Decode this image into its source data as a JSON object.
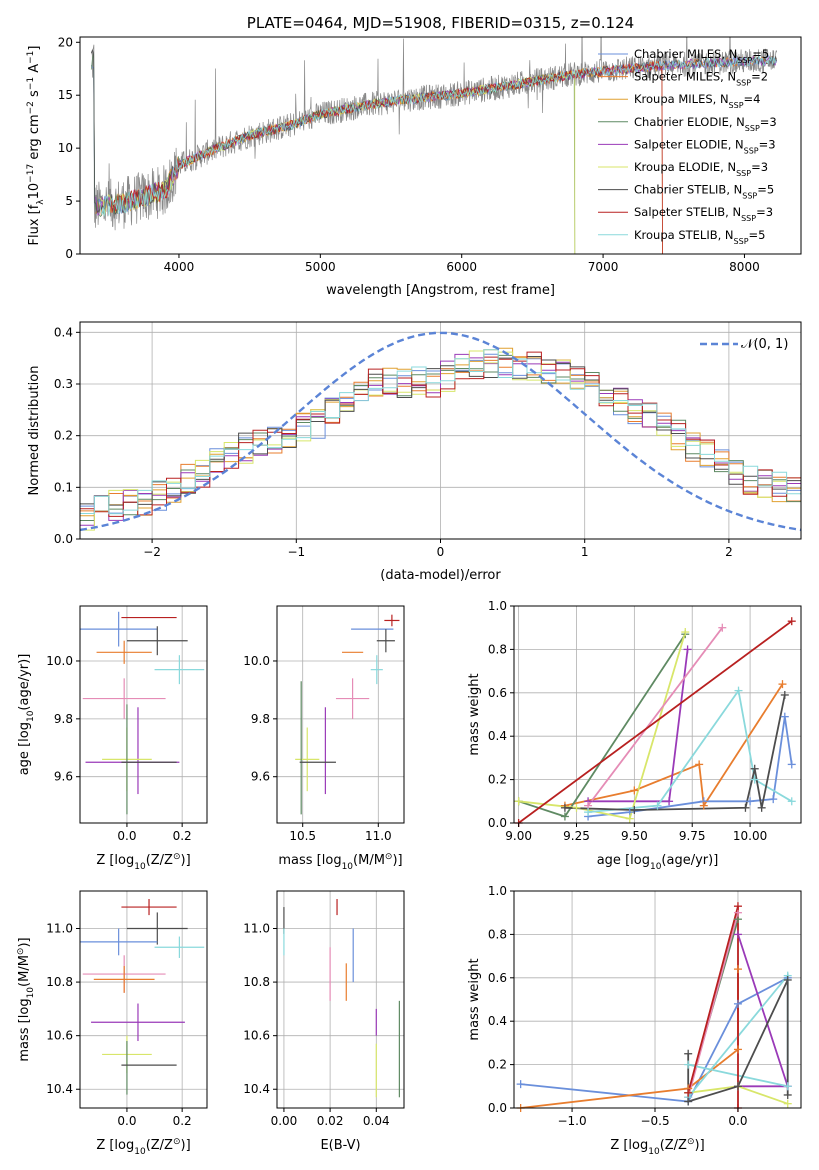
{
  "series_styles": [
    {
      "name": "Chabrier MILES",
      "nssp": "5",
      "color": "#6a8fdb"
    },
    {
      "name": "Salpeter MILES",
      "nssp": "2",
      "color": "#e87d2e"
    },
    {
      "name": "Kroupa MILES",
      "nssp": "4",
      "color": "#e0a030"
    },
    {
      "name": "Chabrier ELODIE",
      "nssp": "3",
      "color": "#5f8a63"
    },
    {
      "name": "Salpeter ELODIE",
      "nssp": "3",
      "color": "#9a3ab8"
    },
    {
      "name": "Kroupa ELODIE",
      "nssp": "3",
      "color": "#d8e66a"
    },
    {
      "name": "Chabrier STELIB",
      "nssp": "5",
      "color": "#4d4d4d"
    },
    {
      "name": "Salpeter STELIB",
      "nssp": "3",
      "color": "#b82020"
    },
    {
      "name": "Kroupa STELIB",
      "nssp": "5",
      "color": "#8ad9dc"
    }
  ],
  "extra_colors": {
    "pink": "#e58cb6",
    "gaussian": "#5b84d6"
  },
  "chart_data": [
    {
      "id": "spectrum",
      "type": "line",
      "title": "PLATE=0464, MJD=51908, FIBERID=0315, z=0.124",
      "xlabel": "wavelength [Angstrom, rest frame]",
      "ylabel_parts": [
        "Flux [f",
        "λ",
        "10",
        "−17",
        " erg cm",
        "−2",
        " s",
        "−1",
        " A",
        "−1",
        "]"
      ],
      "xlim": [
        3300,
        8400
      ],
      "ylim": [
        0,
        20.5
      ],
      "xticks": [
        4000,
        5000,
        6000,
        7000,
        8000
      ],
      "yticks": [
        0,
        5,
        10,
        15,
        20
      ],
      "legend_position": "top-right",
      "continuum": [
        [
          3400,
          4.4
        ],
        [
          3600,
          4.8
        ],
        [
          3800,
          5.6
        ],
        [
          3900,
          6.0
        ],
        [
          4000,
          8.4
        ],
        [
          4200,
          9.6
        ],
        [
          4500,
          11.2
        ],
        [
          4800,
          12.2
        ],
        [
          5000,
          13.2
        ],
        [
          5300,
          14.0
        ],
        [
          5600,
          14.6
        ],
        [
          5900,
          15.0
        ],
        [
          6200,
          15.6
        ],
        [
          6500,
          16.3
        ],
        [
          6800,
          17.0
        ],
        [
          7100,
          17.4
        ],
        [
          7400,
          17.8
        ],
        [
          7700,
          18.0
        ],
        [
          8000,
          18.2
        ],
        [
          8200,
          18.3
        ]
      ],
      "data_range": [
        3380,
        8230
      ],
      "model_dropouts": [
        {
          "series": "Kroupa ELODIE",
          "x": 6800
        },
        {
          "series": "Chabrier ELODIE",
          "x": 6800
        },
        {
          "series": "Salpeter STELIB",
          "x": 7420
        },
        {
          "series": "Kroupa MILES",
          "x": 7420
        }
      ]
    },
    {
      "id": "residuals",
      "type": "histogram",
      "xlabel": "(data-model)/error",
      "ylabel": "Normed distribution",
      "xlim": [
        -2.5,
        2.5
      ],
      "ylim": [
        0,
        0.42
      ],
      "xticks": [
        -2,
        -1,
        0,
        1,
        2
      ],
      "yticks": [
        0,
        0.1,
        0.2,
        0.3,
        0.4
      ],
      "grid": true,
      "bin_width": 0.1,
      "legend_label": "𝒩(0, 1)",
      "legend_position": "top-right",
      "base_profile": [
        0.045,
        0.055,
        0.065,
        0.07,
        0.075,
        0.085,
        0.1,
        0.115,
        0.13,
        0.145,
        0.16,
        0.175,
        0.185,
        0.19,
        0.2,
        0.215,
        0.225,
        0.245,
        0.27,
        0.285,
        0.3,
        0.305,
        0.3,
        0.31,
        0.3,
        0.315,
        0.33,
        0.34,
        0.34,
        0.34,
        0.335,
        0.335,
        0.33,
        0.32,
        0.31,
        0.3,
        0.28,
        0.265,
        0.25,
        0.235,
        0.22,
        0.2,
        0.18,
        0.165,
        0.15,
        0.13,
        0.115,
        0.105,
        0.1,
        0.09
      ]
    },
    {
      "id": "age_vs_Z",
      "type": "errorbar",
      "xlabel_parts": [
        "Z [log",
        "10",
        "(Z/Z",
        "⊙",
        ")]"
      ],
      "ylabel_parts": [
        "age  [log",
        "10",
        "(age/yr)]"
      ],
      "xlim": [
        -0.17,
        0.29
      ],
      "ylim": [
        9.44,
        10.19
      ],
      "xticks": [
        0.0,
        0.2
      ],
      "yticks": [
        9.6,
        9.8,
        10.0
      ],
      "grid": true,
      "points": [
        {
          "color": "#b82020",
          "x": 0.08,
          "xerr": 0.1,
          "y": 10.15,
          "yerr": 0.0
        },
        {
          "color": "#6a8fdb",
          "x": -0.03,
          "xerr": 0.14,
          "y": 10.11,
          "yerr": 0.06
        },
        {
          "color": "#4d4d4d",
          "x": 0.11,
          "xerr": 0.11,
          "y": 10.07,
          "yerr": 0.05
        },
        {
          "color": "#e87d2e",
          "x": -0.01,
          "xerr": 0.1,
          "y": 10.03,
          "yerr": 0.04
        },
        {
          "color": "#8ad9dc",
          "x": 0.19,
          "xerr": 0.09,
          "y": 9.97,
          "yerr": 0.05
        },
        {
          "color": "#e58cb6",
          "x": -0.01,
          "xerr": 0.15,
          "y": 9.87,
          "yerr": 0.07
        },
        {
          "color": "#9a3ab8",
          "x": 0.04,
          "xerr": 0.0,
          "y": 9.69,
          "yerr": 0.15
        },
        {
          "color": "#d8e66a",
          "x": 0.0,
          "xerr": 0.09,
          "y": 9.66,
          "yerr": 0.11
        },
        {
          "color": "#5f8a63",
          "x": 0.0,
          "xerr": 0.0,
          "y": 9.66,
          "yerr": 0.19
        },
        {
          "color": "#9a3ab8",
          "x": 0.02,
          "xerr": 0.17,
          "y": 9.65,
          "yerr": 0.0
        },
        {
          "color": "#4d4d4d",
          "x": 0.08,
          "xerr": 0.1,
          "y": 9.65,
          "yerr": 0.0
        }
      ]
    },
    {
      "id": "age_vs_mass",
      "type": "errorbar",
      "xlabel_parts": [
        "mass [log",
        "10",
        "(M/M",
        "⊙",
        ")]"
      ],
      "xlim": [
        10.33,
        11.17
      ],
      "ylim": [
        9.44,
        10.19
      ],
      "xticks": [
        10.5,
        11.0
      ],
      "yticks": [
        9.6,
        9.8,
        10.0
      ],
      "grid": true,
      "points": [
        {
          "color": "#b82020",
          "x": 11.09,
          "xerr": 0.05,
          "y": 10.14,
          "yerr": 0.02
        },
        {
          "color": "#6a8fdb",
          "x": 10.96,
          "xerr": 0.14,
          "y": 10.11,
          "yerr": 0.0
        },
        {
          "color": "#4d4d4d",
          "x": 11.05,
          "xerr": 0.06,
          "y": 10.07,
          "yerr": 0.04
        },
        {
          "color": "#e87d2e",
          "x": 10.83,
          "xerr": 0.07,
          "y": 10.03,
          "yerr": 0.0
        },
        {
          "color": "#8ad9dc",
          "x": 10.99,
          "xerr": 0.04,
          "y": 9.97,
          "yerr": 0.05
        },
        {
          "color": "#e58cb6",
          "x": 10.83,
          "xerr": 0.11,
          "y": 9.87,
          "yerr": 0.07
        },
        {
          "color": "#9a3ab8",
          "x": 10.65,
          "xerr": 0.0,
          "y": 9.69,
          "yerr": 0.15
        },
        {
          "color": "#d8e66a",
          "x": 10.53,
          "xerr": 0.08,
          "y": 9.66,
          "yerr": 0.11
        },
        {
          "color": "#5f8a63",
          "x": 10.49,
          "xerr": 0.0,
          "y": 9.7,
          "yerr": 0.23
        },
        {
          "color": "#4d4d4d",
          "x": 10.6,
          "xerr": 0.12,
          "y": 9.65,
          "yerr": 0.0
        }
      ]
    },
    {
      "id": "weight_vs_age",
      "type": "line",
      "xlabel_parts": [
        "age  [log",
        "10",
        "(age/yr)]"
      ],
      "ylabel": "mass weight",
      "xlim": [
        8.98,
        10.22
      ],
      "ylim": [
        0,
        1
      ],
      "xticks": [
        9.0,
        9.25,
        9.5,
        9.75,
        10.0
      ],
      "yticks": [
        0.0,
        0.2,
        0.4,
        0.6,
        0.8,
        1.0
      ],
      "grid": true,
      "series": [
        {
          "color": "#6a8fdb",
          "points": [
            [
              9.3,
              0.03
            ],
            [
              9.48,
              0.05
            ],
            [
              9.8,
              0.1
            ],
            [
              10.0,
              0.1
            ],
            [
              10.1,
              0.11
            ],
            [
              10.15,
              0.49
            ],
            [
              10.18,
              0.27
            ]
          ]
        },
        {
          "color": "#e87d2e",
          "points": [
            [
              9.2,
              0.08
            ],
            [
              9.5,
              0.15
            ],
            [
              9.78,
              0.27
            ],
            [
              9.8,
              0.08
            ],
            [
              10.14,
              0.64
            ]
          ]
        },
        {
          "color": "#5f8a63",
          "points": [
            [
              9.0,
              0.1
            ],
            [
              9.2,
              0.03
            ],
            [
              9.72,
              0.87
            ]
          ]
        },
        {
          "color": "#9a3ab8",
          "points": [
            [
              9.3,
              0.1
            ],
            [
              9.65,
              0.1
            ],
            [
              9.73,
              0.8
            ]
          ]
        },
        {
          "color": "#d8e66a",
          "points": [
            [
              9.0,
              0.1
            ],
            [
              9.25,
              0.07
            ],
            [
              9.48,
              0.02
            ],
            [
              9.72,
              0.88
            ]
          ]
        },
        {
          "color": "#e58cb6",
          "points": [
            [
              9.3,
              0.08
            ],
            [
              9.88,
              0.9
            ]
          ]
        },
        {
          "color": "#8ad9dc",
          "points": [
            [
              9.3,
              0.05
            ],
            [
              9.6,
              0.08
            ],
            [
              9.95,
              0.61
            ],
            [
              10.02,
              0.2
            ],
            [
              10.18,
              0.1
            ]
          ]
        },
        {
          "color": "#4d4d4d",
          "points": [
            [
              9.2,
              0.07
            ],
            [
              9.5,
              0.06
            ],
            [
              9.98,
              0.07
            ],
            [
              10.02,
              0.25
            ],
            [
              10.05,
              0.07
            ],
            [
              10.15,
              0.59
            ]
          ]
        },
        {
          "color": "#b82020",
          "points": [
            [
              9.0,
              0.0
            ],
            [
              10.18,
              0.93
            ]
          ]
        }
      ]
    },
    {
      "id": "mass_vs_Z",
      "type": "errorbar",
      "xlabel_parts": [
        "Z [log",
        "10",
        "(Z/Z",
        "⊙",
        ")]"
      ],
      "ylabel_parts": [
        "mass [log",
        "10",
        "(M/M",
        "⊙",
        ")]"
      ],
      "xlim": [
        -0.17,
        0.29
      ],
      "ylim": [
        10.33,
        11.14
      ],
      "xticks": [
        0.0,
        0.2
      ],
      "yticks": [
        10.4,
        10.6,
        10.8,
        11.0
      ],
      "grid": true,
      "points": [
        {
          "color": "#b82020",
          "x": 0.08,
          "xerr": 0.1,
          "y": 11.08,
          "yerr": 0.03
        },
        {
          "color": "#4d4d4d",
          "x": 0.11,
          "xerr": 0.11,
          "y": 11.0,
          "yerr": 0.06
        },
        {
          "color": "#6a8fdb",
          "x": -0.03,
          "xerr": 0.14,
          "y": 10.95,
          "yerr": 0.05
        },
        {
          "color": "#8ad9dc",
          "x": 0.19,
          "xerr": 0.09,
          "y": 10.93,
          "yerr": 0.04
        },
        {
          "color": "#e58cb6",
          "x": -0.01,
          "xerr": 0.15,
          "y": 10.83,
          "yerr": 0.07
        },
        {
          "color": "#e87d2e",
          "x": -0.01,
          "xerr": 0.11,
          "y": 10.81,
          "yerr": 0.05
        },
        {
          "color": "#9a3ab8",
          "x": 0.04,
          "xerr": 0.17,
          "y": 10.65,
          "yerr": 0.07
        },
        {
          "color": "#d8e66a",
          "x": 0.0,
          "xerr": 0.09,
          "y": 10.53,
          "yerr": 0.07
        },
        {
          "color": "#5f8a63",
          "x": 0.0,
          "xerr": 0.0,
          "y": 10.48,
          "yerr": 0.1
        },
        {
          "color": "#4d4d4d",
          "x": 0.08,
          "xerr": 0.1,
          "y": 10.49,
          "yerr": 0.0
        }
      ]
    },
    {
      "id": "mass_vs_EBV",
      "type": "errorbar",
      "xlabel": "E(B-V)",
      "xlim": [
        -0.003,
        0.052
      ],
      "ylim": [
        10.33,
        11.14
      ],
      "xticks": [
        0.0,
        0.02,
        0.04
      ],
      "yticks": [
        10.4,
        10.6,
        10.8,
        11.0
      ],
      "grid": true,
      "points": [
        {
          "color": "#4d4d4d",
          "x": 0.0,
          "xerr": 0.0,
          "y": 11.03,
          "yerr": 0.05
        },
        {
          "color": "#8ad9dc",
          "x": 0.0,
          "xerr": 0.0,
          "y": 10.95,
          "yerr": 0.05
        },
        {
          "color": "#b82020",
          "x": 0.023,
          "xerr": 0.0,
          "y": 11.08,
          "yerr": 0.03
        },
        {
          "color": "#e58cb6",
          "x": 0.02,
          "xerr": 0.0,
          "y": 10.83,
          "yerr": 0.1
        },
        {
          "color": "#e87d2e",
          "x": 0.027,
          "xerr": 0.0,
          "y": 10.8,
          "yerr": 0.07
        },
        {
          "color": "#6a8fdb",
          "x": 0.03,
          "xerr": 0.0,
          "y": 10.9,
          "yerr": 0.1
        },
        {
          "color": "#9a3ab8",
          "x": 0.04,
          "xerr": 0.0,
          "y": 10.65,
          "yerr": 0.05
        },
        {
          "color": "#d8e66a",
          "x": 0.04,
          "xerr": 0.0,
          "y": 10.47,
          "yerr": 0.1
        },
        {
          "color": "#5f8a63",
          "x": 0.05,
          "xerr": 0.0,
          "y": 10.55,
          "yerr": 0.18
        }
      ]
    },
    {
      "id": "weight_vs_Z",
      "type": "line",
      "xlabel_parts": [
        "Z [log",
        "10",
        "(Z/Z",
        "⊙",
        ")]"
      ],
      "ylabel": "mass weight",
      "xlim": [
        -1.35,
        0.38
      ],
      "ylim": [
        0,
        1
      ],
      "xticks": [
        -1.0,
        -0.5,
        0.0
      ],
      "yticks": [
        0.0,
        0.2,
        0.4,
        0.6,
        0.8,
        1.0
      ],
      "grid": true,
      "series": [
        {
          "color": "#6a8fdb",
          "points": [
            [
              -1.31,
              0.11
            ],
            [
              -0.3,
              0.03
            ],
            [
              0.0,
              0.48
            ],
            [
              0.3,
              0.6
            ]
          ]
        },
        {
          "color": "#e87d2e",
          "points": [
            [
              -1.31,
              0.0
            ],
            [
              -0.3,
              0.09
            ],
            [
              0.0,
              0.27
            ],
            [
              0.0,
              0.64
            ]
          ]
        },
        {
          "color": "#5f8a63",
          "points": [
            [
              -0.3,
              0.07
            ],
            [
              0.0,
              0.87
            ]
          ]
        },
        {
          "color": "#9a3ab8",
          "points": [
            [
              0.0,
              0.1
            ],
            [
              0.3,
              0.1
            ],
            [
              0.0,
              0.8
            ]
          ]
        },
        {
          "color": "#d8e66a",
          "points": [
            [
              -0.3,
              0.07
            ],
            [
              0.0,
              0.1
            ],
            [
              0.3,
              0.02
            ]
          ]
        },
        {
          "color": "#e58cb6",
          "points": [
            [
              -0.3,
              0.05
            ],
            [
              0.0,
              0.9
            ]
          ]
        },
        {
          "color": "#8ad9dc",
          "points": [
            [
              -0.3,
              0.05
            ],
            [
              0.3,
              0.61
            ],
            [
              0.3,
              0.1
            ],
            [
              -0.3,
              0.2
            ]
          ]
        },
        {
          "color": "#4d4d4d",
          "points": [
            [
              -0.3,
              0.25
            ],
            [
              -0.3,
              0.03
            ],
            [
              0.0,
              0.1
            ],
            [
              0.3,
              0.59
            ],
            [
              0.3,
              0.06
            ]
          ]
        },
        {
          "color": "#b82020",
          "points": [
            [
              -0.3,
              0.07
            ],
            [
              0.0,
              0.93
            ],
            [
              0.0,
              0.0
            ]
          ]
        }
      ]
    }
  ]
}
